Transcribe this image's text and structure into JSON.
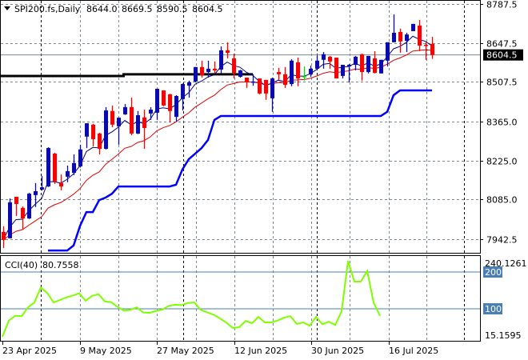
{
  "header": {
    "symbol": "SPI200.fs,Daily",
    "open": "8644.0",
    "high": "8669.5",
    "low": "8590.5",
    "close": "8604.5"
  },
  "colors": {
    "up": "#0a0ab4",
    "down": "#ff0000",
    "doji": "#00e000",
    "ema_fast": "#000080",
    "ema_slow": "#e00000",
    "stop_line": "#0000ff",
    "support": "#000000",
    "cci": "#7fff00",
    "cci_level": "#4a7fb5",
    "price_badge": "#000000"
  },
  "chart_data": [
    {
      "type": "candlestick",
      "title": "SPI200.fs,Daily",
      "ylim": [
        7942.5,
        8787.5
      ],
      "y_ticks": [
        "8787.5",
        "8647.5",
        "8507.5",
        "8365.0",
        "8225.0",
        "8085.0",
        "7942.5"
      ],
      "y_tick_values": [
        8787.5,
        8647.5,
        8507.5,
        8365.0,
        8225.0,
        8085.0,
        7942.5
      ],
      "current_price": "8604.5",
      "x_labels": [
        "23 Apr 2025",
        "9 May 2025",
        "27 May 2025",
        "12 Jun 2025",
        "30 Jun 2025",
        "16 Jul 2025"
      ],
      "candles_ohlc": [
        [
          7969,
          7989,
          7911,
          7940
        ],
        [
          7946,
          8089,
          7945,
          8075
        ],
        [
          8095,
          8095,
          8026,
          8069
        ],
        [
          8055,
          8060,
          7977,
          8017
        ],
        [
          8017,
          8109,
          8015,
          8106
        ],
        [
          8101,
          8144,
          8058,
          8115
        ],
        [
          8121,
          8170,
          8117,
          8129
        ],
        [
          8132,
          8273,
          8130,
          8270
        ],
        [
          8250,
          8253,
          8141,
          8150
        ],
        [
          8144,
          8175,
          8118,
          8132
        ],
        [
          8167,
          8207,
          8147,
          8187
        ],
        [
          8181,
          8247,
          8173,
          8216
        ],
        [
          8204,
          8282,
          8200,
          8265
        ],
        [
          8311,
          8359,
          8270,
          8359
        ],
        [
          8354,
          8357,
          8276,
          8302
        ],
        [
          8322,
          8325,
          8247,
          8267
        ],
        [
          8267,
          8417,
          8265,
          8405
        ],
        [
          8403,
          8423,
          8345,
          8354
        ],
        [
          8348,
          8380,
          8282,
          8379
        ],
        [
          8391,
          8428,
          8389,
          8417
        ],
        [
          8417,
          8451,
          8316,
          8322
        ],
        [
          8322,
          8403,
          8320,
          8388
        ],
        [
          8380,
          8408,
          8267,
          8342
        ],
        [
          8394,
          8417,
          8371,
          8408
        ],
        [
          8397,
          8483,
          8371,
          8483
        ],
        [
          8477,
          8477,
          8420,
          8423
        ],
        [
          8463,
          8465,
          8362,
          8403
        ],
        [
          8382,
          8460,
          8365,
          8457
        ],
        [
          8446,
          8502,
          8405,
          8500
        ],
        [
          8494,
          8512,
          8451,
          8506
        ],
        [
          8509,
          8561,
          8506,
          8561
        ],
        [
          8561,
          8584,
          8523,
          8532
        ],
        [
          8543,
          8584,
          8523,
          8555
        ],
        [
          8555,
          8581,
          8538,
          8549
        ],
        [
          8552,
          8635,
          8538,
          8621
        ],
        [
          8621,
          8650,
          8592,
          8612
        ],
        [
          8592,
          8609,
          8520,
          8540
        ],
        [
          8526,
          8551,
          8523,
          8549
        ],
        [
          8523,
          8523,
          8486,
          8506
        ],
        [
          8506,
          8535,
          8494,
          8509
        ],
        [
          8520,
          8520,
          8463,
          8466
        ],
        [
          8515,
          8515,
          8443,
          8466
        ],
        [
          8449,
          8523,
          8400,
          8520
        ],
        [
          8543,
          8558,
          8515,
          8535
        ],
        [
          8535,
          8561,
          8486,
          8497
        ],
        [
          8500,
          8589,
          8492,
          8584
        ],
        [
          8578,
          8595,
          8492,
          8520
        ],
        [
          8526,
          8563,
          8512,
          8526
        ],
        [
          8535,
          8566,
          8526,
          8555
        ],
        [
          8555,
          8601,
          8552,
          8584
        ],
        [
          8587,
          8615,
          8555,
          8607
        ],
        [
          8598,
          8601,
          8555,
          8581
        ],
        [
          8595,
          8595,
          8520,
          8520
        ],
        [
          8529,
          8569,
          8520,
          8569
        ],
        [
          8563,
          8572,
          8506,
          8569
        ],
        [
          8569,
          8601,
          8549,
          8598
        ],
        [
          8607,
          8609,
          8512,
          8543
        ],
        [
          8543,
          8601,
          8538,
          8601
        ],
        [
          8592,
          8618,
          8538,
          8540
        ],
        [
          8538,
          8587,
          8538,
          8587
        ],
        [
          8584,
          8650,
          8563,
          8650
        ],
        [
          8650,
          8750,
          8650,
          8684
        ],
        [
          8687,
          8699,
          8612,
          8653
        ],
        [
          8655,
          8684,
          8615,
          8678
        ],
        [
          8690,
          8716,
          8690,
          8716
        ],
        [
          8710,
          8730,
          8618,
          8638
        ],
        [
          8641,
          8650,
          8587,
          8638
        ],
        [
          8644,
          8669.5,
          8590.5,
          8604.5
        ]
      ],
      "ema_periods": [
        5,
        15
      ],
      "stop_line": {
        "start_index": 7,
        "values": [
          7902,
          7902,
          7902,
          7902,
          7920,
          7990,
          8040,
          8040,
          8083,
          8092,
          8106,
          8132,
          8132,
          8132,
          8132,
          8132,
          8132,
          8132,
          8132,
          8132,
          8138,
          8193,
          8230,
          8250,
          8270,
          8299,
          8371,
          8385,
          8385,
          8385,
          8385,
          8385,
          8385,
          8385,
          8385,
          8385,
          8385,
          8385,
          8385,
          8385,
          8385,
          8385,
          8385,
          8385,
          8385,
          8385,
          8385,
          8385,
          8385,
          8385,
          8385,
          8385,
          8385,
          8400,
          8460,
          8477,
          8477,
          8477,
          8477,
          8477,
          8477
        ]
      },
      "support_levels": [
        {
          "value": 8529,
          "from_index": 0,
          "to_index": 19
        },
        {
          "value": 8535,
          "from_index": 19,
          "to_index": 39
        }
      ]
    },
    {
      "type": "line",
      "title": "CCI(40) 80.7558",
      "label": "CCI(40)",
      "last_value": "80.7558",
      "ylim": [
        15.1595,
        240.1261
      ],
      "y_max_label": "240.1261",
      "y_min_label": "15.1595",
      "levels": [
        200,
        100
      ],
      "level_labels": [
        "200",
        "100"
      ],
      "values": [
        24,
        68,
        81,
        80,
        104,
        117,
        158,
        143,
        117,
        124,
        131,
        136,
        142,
        122,
        135,
        140,
        120,
        118,
        105,
        95,
        97,
        104,
        90,
        89,
        94,
        98,
        108,
        111,
        110,
        116,
        117,
        97,
        90,
        84,
        74,
        62,
        48,
        50,
        67,
        61,
        78,
        63,
        63,
        68,
        76,
        80,
        59,
        63,
        54,
        78,
        58,
        65,
        56,
        93,
        230,
        174,
        174,
        203,
        117,
        80.76
      ]
    }
  ]
}
